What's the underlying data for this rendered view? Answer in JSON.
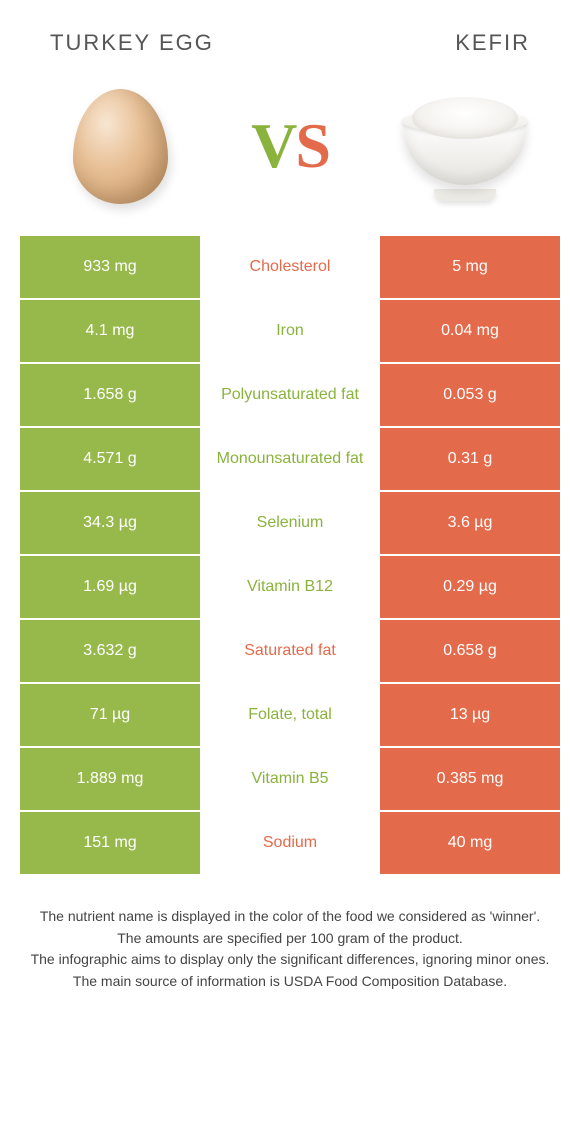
{
  "header": {
    "left_title": "TURKEY EGG",
    "right_title": "KEFIR"
  },
  "vs": {
    "v": "V",
    "s": "S"
  },
  "colors": {
    "left_bg": "#97b94c",
    "right_bg": "#e36a4a",
    "mid_bg": "#ffffff",
    "label_green": "#8ab33e",
    "label_orange": "#e36a4a",
    "cell_text": "#ffffff"
  },
  "table": {
    "rows": [
      {
        "left": "933 mg",
        "label": "Cholesterol",
        "right": "5 mg",
        "winner": "right"
      },
      {
        "left": "4.1 mg",
        "label": "Iron",
        "right": "0.04 mg",
        "winner": "left"
      },
      {
        "left": "1.658 g",
        "label": "Polyunsaturated fat",
        "right": "0.053 g",
        "winner": "left"
      },
      {
        "left": "4.571 g",
        "label": "Monounsaturated fat",
        "right": "0.31 g",
        "winner": "left"
      },
      {
        "left": "34.3 µg",
        "label": "Selenium",
        "right": "3.6 µg",
        "winner": "left"
      },
      {
        "left": "1.69 µg",
        "label": "Vitamin B12",
        "right": "0.29 µg",
        "winner": "left"
      },
      {
        "left": "3.632 g",
        "label": "Saturated fat",
        "right": "0.658 g",
        "winner": "right"
      },
      {
        "left": "71 µg",
        "label": "Folate, total",
        "right": "13 µg",
        "winner": "left"
      },
      {
        "left": "1.889 mg",
        "label": "Vitamin B5",
        "right": "0.385 mg",
        "winner": "left"
      },
      {
        "left": "151 mg",
        "label": "Sodium",
        "right": "40 mg",
        "winner": "right"
      }
    ]
  },
  "footer": {
    "line1": "The nutrient name is displayed in the color of the food we considered as 'winner'.",
    "line2": "The amounts are specified per 100 gram of the product.",
    "line3": "The infographic aims to display only the significant differences, ignoring minor ones.",
    "line4": "The main source of information is USDA Food Composition Database."
  }
}
